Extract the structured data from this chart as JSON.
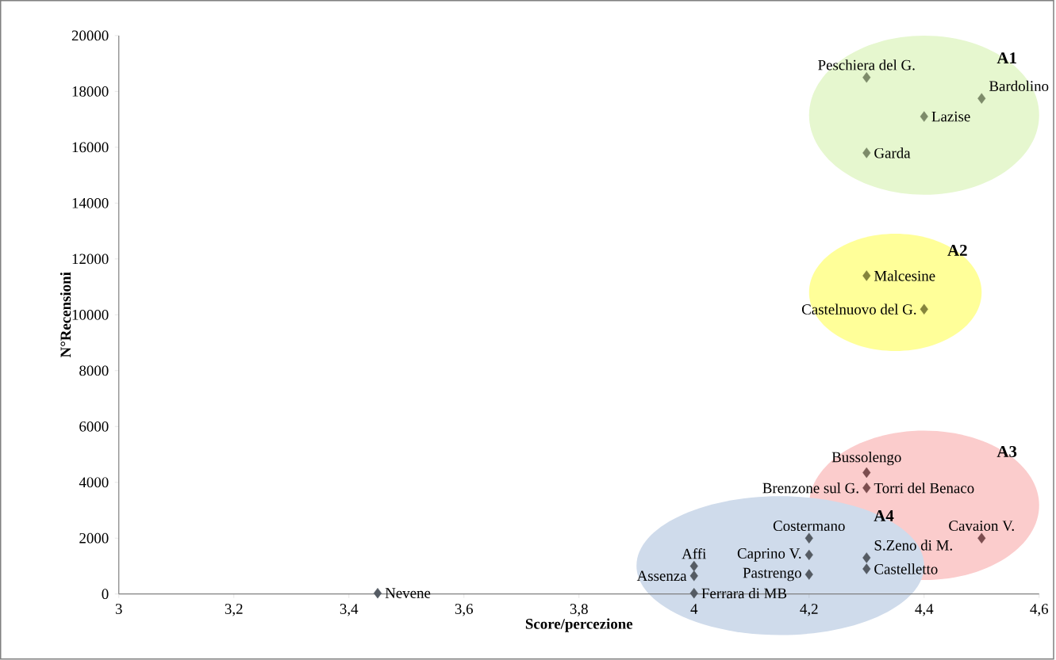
{
  "chart_data": {
    "type": "scatter",
    "xlabel": "Score/percezione",
    "ylabel": "N°Recensioni",
    "xlim": [
      3,
      4.6
    ],
    "ylim": [
      0,
      20000
    ],
    "xticks": [
      3,
      {
        "value": 3.2,
        "label": "3,2"
      },
      {
        "value": 3.4,
        "label": "3,4"
      },
      {
        "value": 3.6,
        "label": "3,6"
      },
      {
        "value": 3.8,
        "label": "3,8"
      },
      4,
      {
        "value": 4.2,
        "label": "4,2"
      },
      {
        "value": 4.4,
        "label": "4,4"
      },
      {
        "value": 4.6,
        "label": "4,6"
      }
    ],
    "yticks": [
      0,
      2000,
      4000,
      6000,
      8000,
      10000,
      12000,
      14000,
      16000,
      18000,
      20000
    ],
    "marker": "diamond",
    "grid": false,
    "legend": false,
    "series": [
      {
        "name": "A1",
        "color": "#7d8b6a",
        "x": [
          4.3,
          4.5,
          4.4,
          4.3
        ],
        "values": [
          18500,
          17750,
          17100,
          15800
        ]
      },
      {
        "name": "A2",
        "color": "#85843c",
        "x": [
          4.3,
          4.4
        ],
        "values": [
          11400,
          10200
        ]
      },
      {
        "name": "A3",
        "color": "#7b4d4f",
        "x": [
          4.3,
          4.3,
          4.5
        ],
        "values": [
          4350,
          3800,
          2000
        ]
      },
      {
        "name": "A4",
        "color": "#555b63",
        "x": [
          4.2,
          4.2,
          4.2,
          4.3,
          4.3,
          4,
          4,
          4
        ],
        "values": [
          2000,
          1400,
          700,
          1300,
          900,
          1000,
          650,
          30
        ]
      },
      {
        "color": "#555b63",
        "x": [
          3.45
        ],
        "values": [
          30
        ]
      }
    ],
    "annotations": [
      {
        "text": "Peschiera del G.",
        "x": 4.3,
        "y": 18500
      },
      {
        "text": "Bardolino",
        "x": 4.5,
        "y": 17750
      },
      {
        "text": "Lazise",
        "x": 4.4,
        "y": 17100
      },
      {
        "text": "Garda",
        "x": 4.3,
        "y": 15800
      },
      {
        "text": "Malcesine",
        "x": 4.3,
        "y": 11400
      },
      {
        "text": "Castelnuovo del G.",
        "x": 4.4,
        "y": 10200
      },
      {
        "text": "Bussolengo",
        "x": 4.3,
        "y": 4350
      },
      {
        "text": "Brenzone sul G.",
        "x": 4.3,
        "y": 3800
      },
      {
        "text": "Torri del Benaco",
        "x": 4.3,
        "y": 3800
      },
      {
        "text": "Cavaion V.",
        "x": 4.5,
        "y": 2000
      },
      {
        "text": "Costermano",
        "x": 4.2,
        "y": 2000
      },
      {
        "text": "S.Zeno di M.",
        "x": 4.3,
        "y": 1300
      },
      {
        "text": "Castelletto",
        "x": 4.3,
        "y": 900
      },
      {
        "text": "Caprino V.",
        "x": 4.2,
        "y": 1400
      },
      {
        "text": "Pastrengo",
        "x": 4.2,
        "y": 700
      },
      {
        "text": "Affi",
        "x": 4,
        "y": 1000
      },
      {
        "text": "Assenza",
        "x": 4,
        "y": 650
      },
      {
        "text": "Ferrara di MB",
        "x": 4,
        "y": 30
      },
      {
        "text": "Nevene",
        "x": 3.45,
        "y": 30
      }
    ]
  }
}
